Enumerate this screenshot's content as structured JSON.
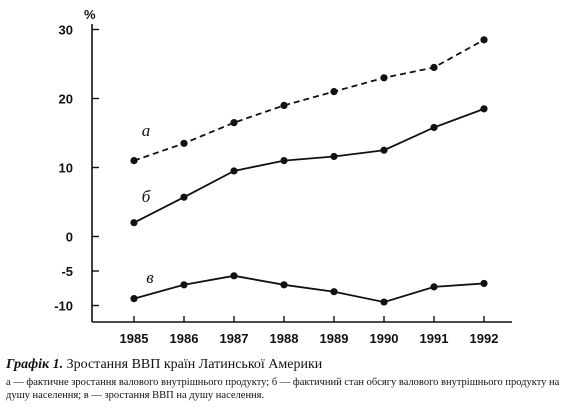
{
  "chart_data": {
    "type": "line",
    "categories": [
      "1985",
      "1986",
      "1987",
      "1988",
      "1989",
      "1990",
      "1991",
      "1992"
    ],
    "unit": "%",
    "ylim": [
      -10,
      30
    ],
    "yticks": [
      30,
      20,
      10,
      0,
      -5,
      -10
    ],
    "ytick_labels": [
      "30",
      "20",
      "10",
      "0",
      "-5",
      "-10"
    ],
    "grid": false,
    "series": [
      {
        "name": "а",
        "style": "dashed",
        "values": [
          11,
          13.5,
          16.5,
          19,
          21,
          23,
          24.5,
          28.5
        ]
      },
      {
        "name": "б",
        "style": "solid",
        "values": [
          2,
          5.7,
          9.5,
          11,
          11.6,
          12.5,
          15.8,
          18.5
        ]
      },
      {
        "name": "в",
        "style": "solid",
        "values": [
          -9,
          -7,
          -5.7,
          -7,
          -8,
          -9.5,
          -7.3,
          -6.8
        ]
      }
    ]
  },
  "caption": {
    "lead": "Графік 1.",
    "title": " Зростання ВВП країн Латинської Америки"
  },
  "note": "а — фактичне зростання валового внутрішнього продукту; б — фактичний стан обсягу валового внутрішнього продукту на душу населення; в — зростання ВВП на душу населення.",
  "colors": {
    "ink": "#111111",
    "background": "#ffffff"
  }
}
